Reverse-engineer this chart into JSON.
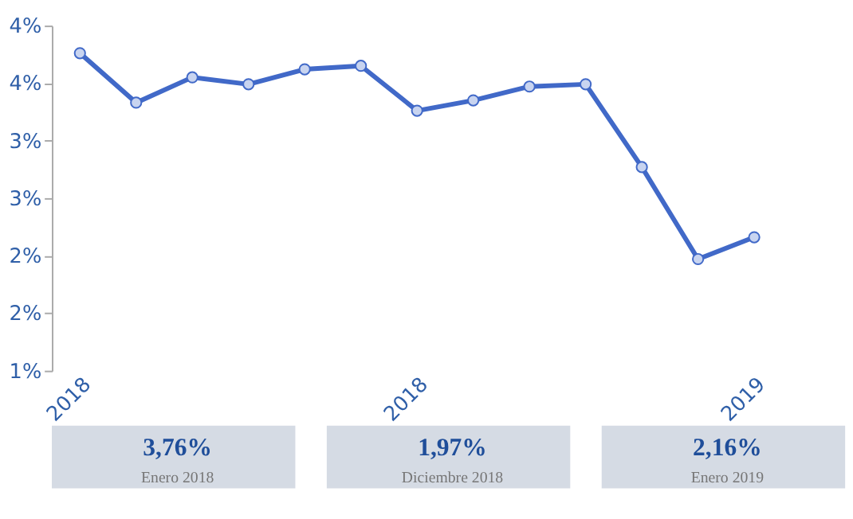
{
  "chart_data": {
    "type": "line",
    "categories": [
      "2018",
      null,
      null,
      null,
      null,
      null,
      "2018",
      null,
      null,
      null,
      null,
      null,
      "2019"
    ],
    "series": [
      {
        "color": "#4169c8",
        "values": [
          3.76,
          3.33,
          3.55,
          3.49,
          3.62,
          3.65,
          3.26,
          3.35,
          3.47,
          3.49,
          2.77,
          1.97,
          2.16
        ]
      }
    ],
    "ylim": [
      1,
      4
    ],
    "yticks": [
      {
        "value": 1,
        "label": "1%"
      },
      {
        "value": 1.5,
        "label": "2%"
      },
      {
        "value": 2,
        "label": "2%"
      },
      {
        "value": 2.5,
        "label": "3%"
      },
      {
        "value": 3,
        "label": "3%"
      },
      {
        "value": 3.5,
        "label": "4%"
      },
      {
        "value": 4,
        "label": "4%"
      }
    ],
    "marker": "circle",
    "grid": false,
    "legend": false,
    "annotations": [
      "3,76%",
      "Enero 2018",
      "1,97%",
      "Diciembre 2018",
      "2,16%",
      "Enero 2019"
    ]
  }
}
